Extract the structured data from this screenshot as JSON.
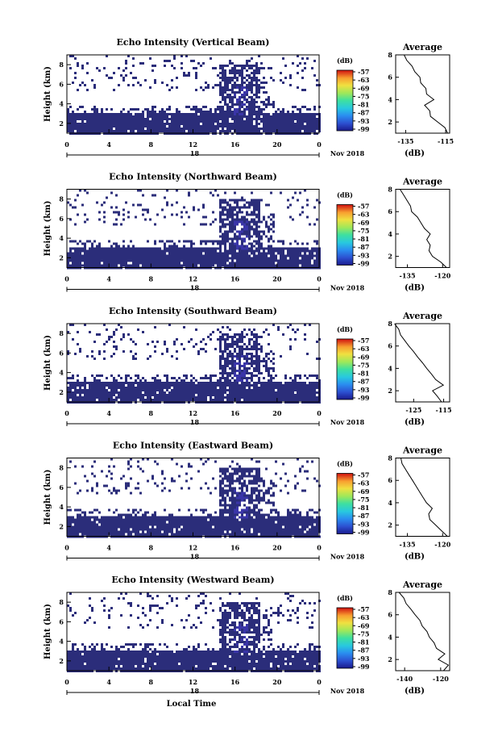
{
  "chart_data": [
    {
      "type": "heatmap",
      "title": "Echo Intensity (Vertical Beam)",
      "ylabel": "Height (km)",
      "yticks": [
        "2",
        "4",
        "6",
        "8"
      ],
      "xticks": [
        "0",
        "4",
        "8",
        "12",
        "16",
        "20",
        "0"
      ],
      "day_label": "18",
      "date_label": "Nov 2018",
      "colorbar_label": "(dB)",
      "colorbar_ticks": [
        "-57",
        "-63",
        "-69",
        "-75",
        "-81",
        "-87",
        "-93",
        "-99"
      ],
      "profile": {
        "title": "Average",
        "xticks": [
          "-135",
          "-115"
        ],
        "xlabel": "(dB)",
        "yticks": [
          "2",
          "4",
          "6",
          "8"
        ],
        "xlim": [
          -140,
          -113
        ],
        "height_km": [
          1.0,
          1.5,
          2.0,
          2.5,
          3.0,
          3.5,
          4.0,
          4.5,
          5.0,
          5.5,
          6.0,
          6.5,
          7.0,
          7.5,
          8.0
        ],
        "values_db": [
          -114,
          -116,
          -119,
          -122,
          -123,
          -125,
          -121,
          -124,
          -125,
          -127,
          -128,
          -130,
          -132,
          -134,
          -136
        ]
      }
    },
    {
      "type": "heatmap",
      "title": "Echo Intensity (Northward Beam)",
      "ylabel": "Height (km)",
      "yticks": [
        "2",
        "4",
        "6",
        "8"
      ],
      "xticks": [
        "0",
        "4",
        "8",
        "12",
        "16",
        "20",
        "0"
      ],
      "day_label": "18",
      "date_label": "Nov 2018",
      "colorbar_label": "(dB)",
      "colorbar_ticks": [
        "-57",
        "-63",
        "-69",
        "-75",
        "-81",
        "-87",
        "-93",
        "-99"
      ],
      "profile": {
        "title": "Average",
        "xticks": [
          "-135",
          "-120"
        ],
        "xlabel": "(dB)",
        "yticks": [
          "2",
          "4",
          "6",
          "8"
        ],
        "xlim": [
          -140,
          -117
        ],
        "height_km": [
          1.0,
          1.5,
          2.0,
          2.5,
          3.0,
          3.5,
          4.0,
          4.5,
          5.0,
          5.5,
          6.0,
          6.5,
          7.0,
          7.5,
          8.0
        ],
        "values_db": [
          -118,
          -121,
          -124,
          -126,
          -125,
          -127,
          -125,
          -128,
          -129,
          -131,
          -133,
          -134,
          -135,
          -137,
          -138
        ]
      }
    },
    {
      "type": "heatmap",
      "title": "Echo Intensity (Southward Beam)",
      "ylabel": "Height (km)",
      "yticks": [
        "2",
        "4",
        "6",
        "8"
      ],
      "xticks": [
        "0",
        "4",
        "8",
        "12",
        "16",
        "20",
        "0"
      ],
      "day_label": "18",
      "date_label": "Nov 2018",
      "colorbar_label": "(dB)",
      "colorbar_ticks": [
        "-57",
        "-63",
        "-69",
        "-75",
        "-81",
        "-87",
        "-93",
        "-99"
      ],
      "profile": {
        "title": "Average",
        "xticks": [
          "-125",
          "-115"
        ],
        "xlabel": "(dB)",
        "yticks": [
          "2",
          "4",
          "6",
          "8"
        ],
        "xlim": [
          -131,
          -113
        ],
        "height_km": [
          1.0,
          1.5,
          2.0,
          2.5,
          3.0,
          3.5,
          4.0,
          4.5,
          5.0,
          5.5,
          6.0,
          6.5,
          7.0,
          7.5,
          8.0
        ],
        "values_db": [
          -116,
          -117,
          -119,
          -115,
          -118,
          -119,
          -121,
          -122,
          -124,
          -125,
          -127,
          -128,
          -129,
          -130,
          -131
        ]
      }
    },
    {
      "type": "heatmap",
      "title": "Echo Intensity (Eastward Beam)",
      "ylabel": "Height (km)",
      "yticks": [
        "2",
        "4",
        "6",
        "8"
      ],
      "xticks": [
        "0",
        "4",
        "8",
        "12",
        "16",
        "20",
        "0"
      ],
      "day_label": "18",
      "date_label": "Nov 2018",
      "colorbar_label": "(dB)",
      "colorbar_ticks": [
        "-57",
        "-63",
        "-69",
        "-75",
        "-81",
        "-87",
        "-93",
        "-99"
      ],
      "profile": {
        "title": "Average",
        "xticks": [
          "-135",
          "-120"
        ],
        "xlabel": "(dB)",
        "yticks": [
          "2",
          "4",
          "6",
          "8"
        ],
        "xlim": [
          -140,
          -117
        ],
        "height_km": [
          1.0,
          1.5,
          2.0,
          2.5,
          3.0,
          3.5,
          4.0,
          4.5,
          5.0,
          5.5,
          6.0,
          6.5,
          7.0,
          7.5,
          8.0
        ],
        "values_db": [
          -118,
          -120,
          -123,
          -125,
          -126,
          -124,
          -127,
          -128,
          -130,
          -131,
          -133,
          -134,
          -136,
          -137,
          -138
        ]
      }
    },
    {
      "type": "heatmap",
      "title": "Echo Intensity (Westward Beam)",
      "ylabel": "Height (km)",
      "yticks": [
        "2",
        "4",
        "6",
        "8"
      ],
      "xticks": [
        "0",
        "4",
        "8",
        "12",
        "16",
        "20",
        "0"
      ],
      "day_label": "18",
      "date_label": "Nov 2018",
      "xlabel": "Local Time",
      "colorbar_label": "(dB)",
      "colorbar_ticks": [
        "-57",
        "-63",
        "-69",
        "-75",
        "-81",
        "-87",
        "-93",
        "-99"
      ],
      "profile": {
        "title": "Average",
        "xticks": [
          "-140",
          "-120"
        ],
        "xlabel": "(dB)",
        "yticks": [
          "2",
          "4",
          "6",
          "8"
        ],
        "xlim": [
          -145,
          -115
        ],
        "height_km": [
          1.0,
          1.5,
          2.0,
          2.5,
          3.0,
          3.5,
          4.0,
          4.5,
          5.0,
          5.5,
          6.0,
          6.5,
          7.0,
          7.5,
          8.0
        ],
        "values_db": [
          -118,
          -116,
          -121,
          -118,
          -122,
          -124,
          -126,
          -128,
          -130,
          -132,
          -134,
          -137,
          -139,
          -141,
          -143
        ]
      }
    }
  ],
  "colors": {
    "dominant": "#2b2d7a",
    "deep": "#3a35a8",
    "colorbar": [
      "#1a1a8c",
      "#2c4fd0",
      "#2a8ef0",
      "#28c8e0",
      "#3ee0a0",
      "#9ee85a",
      "#f0e040",
      "#f8a030",
      "#f05020",
      "#d01010"
    ]
  }
}
